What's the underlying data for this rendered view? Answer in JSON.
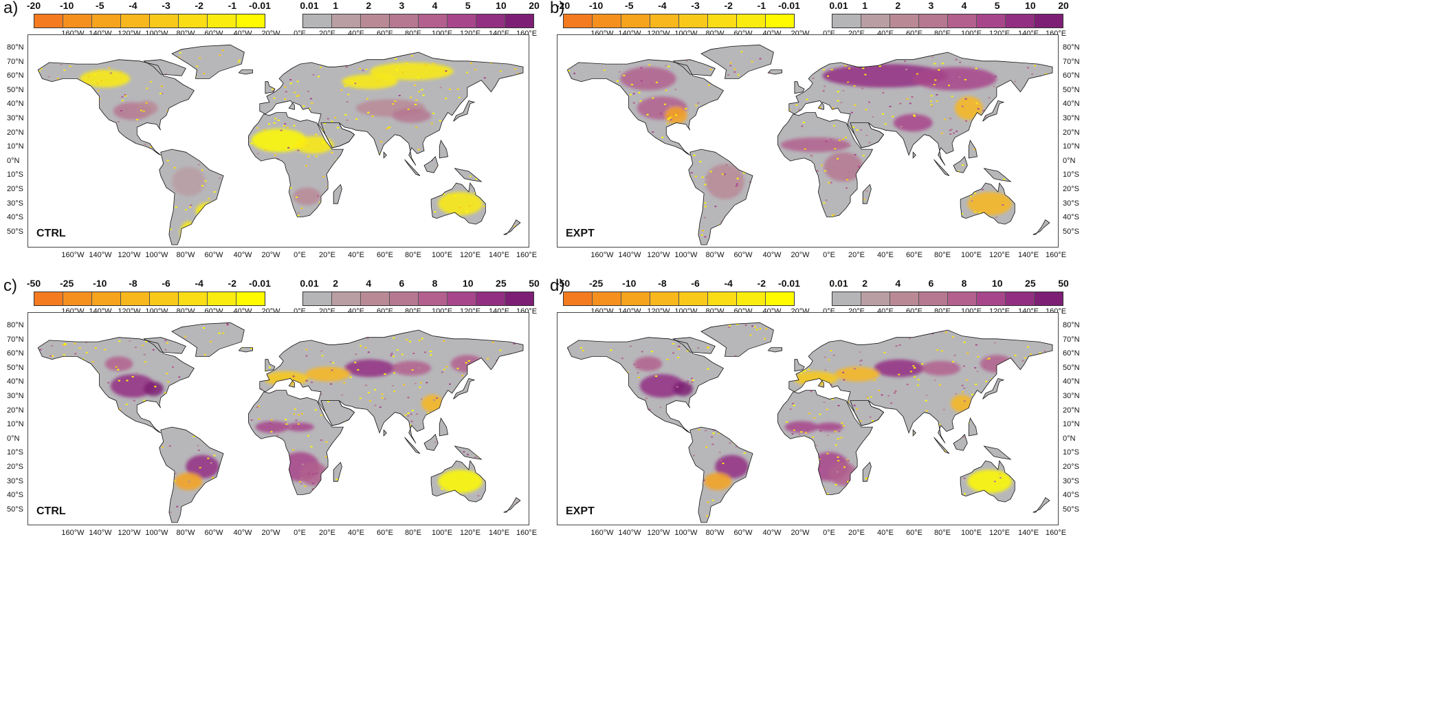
{
  "panels": [
    {
      "label": "a)",
      "run": "CTRL",
      "neg_labels": [
        "-20",
        "-10",
        "-5",
        "-4",
        "-3",
        "-2",
        "-1",
        "-0.01"
      ],
      "pos_labels": [
        "0.01",
        "1",
        "2",
        "3",
        "4",
        "5",
        "10",
        "20"
      ],
      "lat_side": "left",
      "pattern": "ab"
    },
    {
      "label": "b)",
      "run": "EXPT",
      "neg_labels": [
        "-20",
        "-10",
        "-5",
        "-4",
        "-3",
        "-2",
        "-1",
        "-0.01"
      ],
      "pos_labels": [
        "0.01",
        "1",
        "2",
        "3",
        "4",
        "5",
        "10",
        "20"
      ],
      "lat_side": "right",
      "pattern": "b"
    },
    {
      "label": "c)",
      "run": "CTRL",
      "neg_labels": [
        "-50",
        "-25",
        "-10",
        "-8",
        "-6",
        "-4",
        "-2",
        "-0.01"
      ],
      "pos_labels": [
        "0.01",
        "2",
        "4",
        "6",
        "8",
        "10",
        "25",
        "50"
      ],
      "lat_side": "left",
      "pattern": "cd"
    },
    {
      "label": "d)",
      "run": "EXPT",
      "neg_labels": [
        "-50",
        "-25",
        "-10",
        "-8",
        "-6",
        "-4",
        "-2",
        "-0.01"
      ],
      "pos_labels": [
        "0.01",
        "2",
        "4",
        "6",
        "8",
        "10",
        "25",
        "50"
      ],
      "lat_side": "right",
      "pattern": "cd"
    }
  ],
  "lon_ticks": [
    "160°W",
    "140°W",
    "120°W",
    "100°W",
    "80°W",
    "60°W",
    "40°W",
    "20°W",
    "0°E",
    "20°E",
    "40°E",
    "60°E",
    "80°E",
    "100°E",
    "120°E",
    "140°E",
    "160°E"
  ],
  "lat_ticks": [
    "80°N",
    "70°N",
    "60°N",
    "50°N",
    "40°N",
    "30°N",
    "20°N",
    "10°N",
    "0°N",
    "10°S",
    "20°S",
    "30°S",
    "40°S",
    "50°S"
  ],
  "colors": {
    "negative": [
      "#f47b20",
      "#f5901f",
      "#f6a31e",
      "#f8b71c",
      "#f9c91a",
      "#fadd15",
      "#fbec10",
      "#fffa00"
    ],
    "positive": [
      "#b5b5b8",
      "#b99ea3",
      "#b98a96",
      "#b67890",
      "#b3608e",
      "#a8468b",
      "#932f82",
      "#7d1f74"
    ],
    "land": "#b7b7ba",
    "coast": "#111111"
  }
}
